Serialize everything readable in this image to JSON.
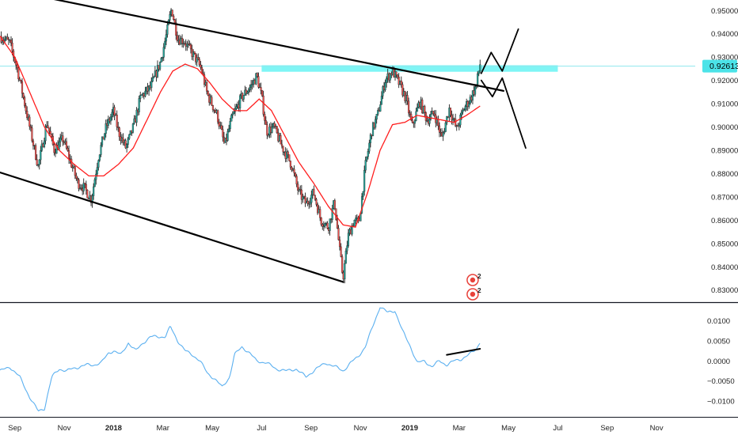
{
  "chart_data": [
    {
      "type": "candlestick",
      "title": "",
      "xlabel": "",
      "ylabel": "",
      "ylim": [
        0.8255,
        0.9545
      ],
      "y_ticks": [
        "0.95000",
        "0.94000",
        "0.93000",
        "0.92000",
        "0.91000",
        "0.90000",
        "0.89000",
        "0.88000",
        "0.87000",
        "0.86000",
        "0.85000",
        "0.84000",
        "0.83000"
      ],
      "y_tick_values": [
        0.95,
        0.94,
        0.93,
        0.92,
        0.91,
        0.9,
        0.89,
        0.88,
        0.87,
        0.86,
        0.85,
        0.84,
        0.83
      ],
      "x_ticks": [
        "Sep",
        "Nov",
        "2018",
        "Mar",
        "May",
        "Jul",
        "Sep",
        "Nov",
        "2019",
        "Mar",
        "May",
        "Jul",
        "Sep",
        "Nov"
      ],
      "x_tick_months": [
        2,
        4,
        6,
        8,
        10,
        12,
        14,
        16,
        18,
        20,
        22,
        24,
        26,
        28
      ],
      "x_range_months": [
        1.4,
        31.3
      ],
      "grid": false,
      "price_label": "0.92613",
      "price_value": 0.92613,
      "close_anchors": [
        [
          1.4,
          0.939
        ],
        [
          1.8,
          0.936
        ],
        [
          2.1,
          0.925
        ],
        [
          2.4,
          0.91
        ],
        [
          2.7,
          0.895
        ],
        [
          2.95,
          0.883
        ],
        [
          3.3,
          0.902
        ],
        [
          3.6,
          0.89
        ],
        [
          3.95,
          0.895
        ],
        [
          4.2,
          0.887
        ],
        [
          4.55,
          0.876
        ],
        [
          4.8,
          0.874
        ],
        [
          5.1,
          0.869
        ],
        [
          5.4,
          0.888
        ],
        [
          5.7,
          0.9
        ],
        [
          6.0,
          0.907
        ],
        [
          6.2,
          0.898
        ],
        [
          6.5,
          0.891
        ],
        [
          6.8,
          0.9
        ],
        [
          7.1,
          0.913
        ],
        [
          7.5,
          0.917
        ],
        [
          7.9,
          0.928
        ],
        [
          8.15,
          0.94
        ],
        [
          8.35,
          0.951
        ],
        [
          8.6,
          0.938
        ],
        [
          8.85,
          0.937
        ],
        [
          9.1,
          0.933
        ],
        [
          9.35,
          0.929
        ],
        [
          9.55,
          0.925
        ],
        [
          9.8,
          0.914
        ],
        [
          10.2,
          0.905
        ],
        [
          10.5,
          0.892
        ],
        [
          10.8,
          0.904
        ],
        [
          11.2,
          0.913
        ],
        [
          11.6,
          0.918
        ],
        [
          11.8,
          0.922
        ],
        [
          12.0,
          0.913
        ],
        [
          12.2,
          0.898
        ],
        [
          12.5,
          0.9
        ],
        [
          12.8,
          0.892
        ],
        [
          13.2,
          0.884
        ],
        [
          13.5,
          0.872
        ],
        [
          13.8,
          0.867
        ],
        [
          14.1,
          0.872
        ],
        [
          14.4,
          0.86
        ],
        [
          14.7,
          0.857
        ],
        [
          14.95,
          0.868
        ],
        [
          15.15,
          0.848
        ],
        [
          15.3,
          0.835
        ],
        [
          15.5,
          0.853
        ],
        [
          15.75,
          0.86
        ],
        [
          15.95,
          0.859
        ],
        [
          16.2,
          0.883
        ],
        [
          16.45,
          0.898
        ],
        [
          16.7,
          0.905
        ],
        [
          17.0,
          0.92
        ],
        [
          17.3,
          0.924
        ],
        [
          17.6,
          0.918
        ],
        [
          17.85,
          0.912
        ],
        [
          18.1,
          0.9
        ],
        [
          18.4,
          0.911
        ],
        [
          18.7,
          0.903
        ],
        [
          19.0,
          0.906
        ],
        [
          19.3,
          0.895
        ],
        [
          19.6,
          0.908
        ],
        [
          19.9,
          0.899
        ],
        [
          20.2,
          0.908
        ],
        [
          20.45,
          0.912
        ],
        [
          20.7,
          0.918
        ],
        [
          20.85,
          0.927
        ]
      ],
      "ma_anchors": [
        [
          1.4,
          0.939
        ],
        [
          2.0,
          0.93
        ],
        [
          2.6,
          0.915
        ],
        [
          3.2,
          0.9
        ],
        [
          3.8,
          0.89
        ],
        [
          4.4,
          0.884
        ],
        [
          5.0,
          0.879
        ],
        [
          5.6,
          0.879
        ],
        [
          6.2,
          0.884
        ],
        [
          6.8,
          0.891
        ],
        [
          7.4,
          0.904
        ],
        [
          7.9,
          0.915
        ],
        [
          8.4,
          0.924
        ],
        [
          8.9,
          0.927
        ],
        [
          9.4,
          0.925
        ],
        [
          9.9,
          0.919
        ],
        [
          10.4,
          0.912
        ],
        [
          10.9,
          0.907
        ],
        [
          11.4,
          0.907
        ],
        [
          11.9,
          0.912
        ],
        [
          12.4,
          0.907
        ],
        [
          12.9,
          0.897
        ],
        [
          13.5,
          0.885
        ],
        [
          14.1,
          0.876
        ],
        [
          14.7,
          0.866
        ],
        [
          15.3,
          0.858
        ],
        [
          15.8,
          0.857
        ],
        [
          16.3,
          0.872
        ],
        [
          16.8,
          0.89
        ],
        [
          17.3,
          0.901
        ],
        [
          17.8,
          0.902
        ],
        [
          18.3,
          0.905
        ],
        [
          18.8,
          0.904
        ],
        [
          19.3,
          0.903
        ],
        [
          19.8,
          0.902
        ],
        [
          20.3,
          0.905
        ],
        [
          20.85,
          0.909
        ]
      ],
      "channel_upper": [
        [
          3.3,
          0.9555
        ],
        [
          21.8,
          0.9155
        ]
      ],
      "channel_lower": [
        [
          1.4,
          0.8805
        ],
        [
          15.3,
          0.8335
        ]
      ],
      "projection_up": [
        [
          20.9,
          0.923
        ],
        [
          21.3,
          0.932
        ],
        [
          21.75,
          0.924
        ],
        [
          22.4,
          0.942
        ]
      ],
      "projection_down": [
        [
          20.9,
          0.92
        ],
        [
          21.35,
          0.913
        ],
        [
          21.75,
          0.921
        ],
        [
          22.7,
          0.891
        ]
      ],
      "resistance_zone": [
        0.9237,
        0.9265
      ],
      "resistance_zone_x": [
        12.0,
        24.0
      ],
      "legend_badges": [
        "2",
        "2"
      ]
    },
    {
      "type": "line",
      "title": "",
      "ylim": [
        -0.0137,
        0.0138
      ],
      "y_ticks": [
        "0.0100",
        "0.0050",
        "0.0000",
        "−0.0050",
        "−0.0100"
      ],
      "y_tick_values": [
        0.01,
        0.005,
        0.0,
        -0.005,
        -0.01
      ],
      "series": [
        {
          "values": [
            [
              1.4,
              -0.0025
            ],
            [
              1.8,
              -0.0015
            ],
            [
              2.2,
              -0.004
            ],
            [
              2.6,
              -0.009
            ],
            [
              2.95,
              -0.0125
            ],
            [
              3.2,
              -0.0118
            ],
            [
              3.5,
              -0.004
            ],
            [
              3.8,
              -0.002
            ],
            [
              4.1,
              -0.0025
            ],
            [
              4.3,
              -0.002
            ],
            [
              4.6,
              -0.0015
            ],
            [
              4.9,
              -0.001
            ],
            [
              5.2,
              -0.001
            ],
            [
              5.5,
              -0.0005
            ],
            [
              5.8,
              0.002
            ],
            [
              6.0,
              0.0025
            ],
            [
              6.3,
              0.0015
            ],
            [
              6.6,
              0.0045
            ],
            [
              6.9,
              0.0025
            ],
            [
              7.2,
              0.0045
            ],
            [
              7.5,
              0.006
            ],
            [
              7.8,
              0.006
            ],
            [
              8.1,
              0.006
            ],
            [
              8.3,
              0.0085
            ],
            [
              8.6,
              0.005
            ],
            [
              8.9,
              0.0025
            ],
            [
              9.2,
              0.0015
            ],
            [
              9.5,
              0.0
            ],
            [
              9.8,
              -0.003
            ],
            [
              10.1,
              -0.0045
            ],
            [
              10.4,
              -0.0065
            ],
            [
              10.7,
              -0.004
            ],
            [
              10.9,
              0.0015
            ],
            [
              11.2,
              0.0035
            ],
            [
              11.5,
              0.002
            ],
            [
              11.8,
              0.0
            ],
            [
              12.2,
              -0.0005
            ],
            [
              12.6,
              -0.002
            ],
            [
              13.0,
              -0.0025
            ],
            [
              13.4,
              -0.002
            ],
            [
              13.8,
              -0.004
            ],
            [
              14.2,
              -0.002
            ],
            [
              14.6,
              -0.0005
            ],
            [
              15.0,
              -0.0015
            ],
            [
              15.3,
              -0.0025
            ],
            [
              15.6,
              -0.0005
            ],
            [
              15.9,
              0.001
            ],
            [
              16.2,
              0.0035
            ],
            [
              16.5,
              0.0085
            ],
            [
              16.8,
              0.0135
            ],
            [
              17.1,
              0.012
            ],
            [
              17.4,
              0.0125
            ],
            [
              17.7,
              0.0075
            ],
            [
              18.0,
              0.004
            ],
            [
              18.3,
              -0.0005
            ],
            [
              18.6,
              0.0
            ],
            [
              18.9,
              -0.0015
            ],
            [
              19.2,
              0.0
            ],
            [
              19.5,
              -0.001
            ],
            [
              19.8,
              0.0
            ],
            [
              20.1,
              0.0005
            ],
            [
              20.4,
              0.0015
            ],
            [
              20.7,
              0.003
            ],
            [
              20.85,
              0.0048
            ]
          ]
        }
      ],
      "trendline": [
        [
          19.5,
          0.0015
        ],
        [
          20.85,
          0.003
        ]
      ]
    }
  ],
  "colors": {
    "up": "#26a69a",
    "down": "#ef5350",
    "wick": "#222222",
    "ma": "#ff1e1e",
    "oscillator": "#5bb0f0",
    "zone": "#7ff5f5",
    "price_line": "#8ee8ee",
    "label_bg": "#4be3e8",
    "drawing": "#000000",
    "badge": "#e8413a"
  }
}
